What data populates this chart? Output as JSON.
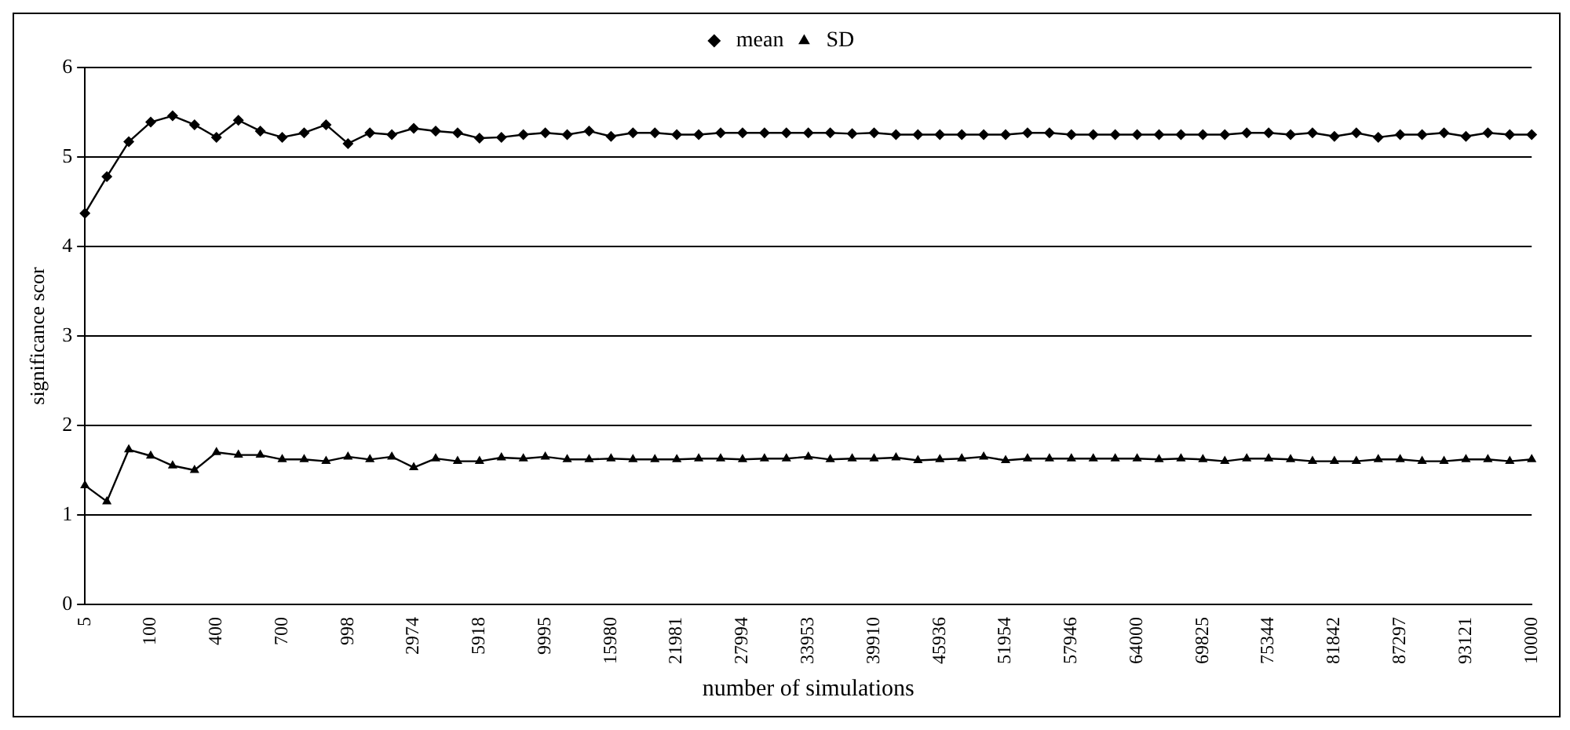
{
  "chart_data": {
    "type": "line",
    "xlabel": "number of simulations",
    "ylabel": "significance scor",
    "categories": [
      "5",
      null,
      null,
      "100",
      null,
      null,
      "400",
      null,
      null,
      "700",
      null,
      null,
      "998",
      null,
      null,
      "2974",
      null,
      null,
      "5918",
      null,
      null,
      "9995",
      null,
      null,
      "15980",
      null,
      null,
      "21981",
      null,
      null,
      "27994",
      null,
      null,
      "33953",
      null,
      null,
      "39910",
      null,
      null,
      "45936",
      null,
      null,
      "51954",
      null,
      null,
      "57946",
      null,
      null,
      "64000",
      null,
      null,
      "69825",
      null,
      null,
      "75344",
      null,
      null,
      "81842",
      null,
      null,
      "87297",
      null,
      null,
      "93121",
      null,
      null,
      "10000"
    ],
    "series": [
      {
        "name": "mean",
        "color": "#000000",
        "marker": "diamond",
        "values": [
          4.37,
          4.78,
          5.17,
          5.39,
          5.46,
          5.36,
          5.22,
          5.41,
          5.29,
          5.22,
          5.27,
          5.36,
          5.15,
          5.27,
          5.25,
          5.32,
          5.29,
          5.27,
          5.21,
          5.22,
          5.25,
          5.27,
          5.25,
          5.29,
          5.23,
          5.27,
          5.27,
          5.25,
          5.25,
          5.27,
          5.27,
          5.27,
          5.27,
          5.27,
          5.27,
          5.26,
          5.27,
          5.25,
          5.25,
          5.25,
          5.25,
          5.25,
          5.25,
          5.27,
          5.27,
          5.25,
          5.25,
          5.25,
          5.25,
          5.25,
          5.25,
          5.25,
          5.25,
          5.27,
          5.27,
          5.25,
          5.27,
          5.23,
          5.27,
          5.22,
          5.25,
          5.25,
          5.27,
          5.23,
          5.27,
          5.25,
          5.25
        ]
      },
      {
        "name": "SD",
        "color": "#000000",
        "marker": "triangle",
        "values": [
          1.33,
          1.15,
          1.73,
          1.66,
          1.55,
          1.5,
          1.7,
          1.67,
          1.67,
          1.62,
          1.62,
          1.6,
          1.65,
          1.62,
          1.65,
          1.53,
          1.63,
          1.6,
          1.6,
          1.64,
          1.63,
          1.65,
          1.62,
          1.62,
          1.63,
          1.62,
          1.62,
          1.62,
          1.63,
          1.63,
          1.62,
          1.63,
          1.63,
          1.65,
          1.62,
          1.63,
          1.63,
          1.64,
          1.61,
          1.62,
          1.63,
          1.65,
          1.61,
          1.63,
          1.63,
          1.63,
          1.63,
          1.63,
          1.63,
          1.62,
          1.63,
          1.62,
          1.6,
          1.63,
          1.63,
          1.62,
          1.6,
          1.6,
          1.6,
          1.62,
          1.62,
          1.6,
          1.6,
          1.62,
          1.62,
          1.6,
          1.62
        ]
      }
    ],
    "ylim": [
      0,
      6
    ],
    "yticks": [
      0,
      1,
      2,
      3,
      4,
      5,
      6
    ],
    "grid": "y",
    "legend": "top",
    "line_style": "solid"
  }
}
